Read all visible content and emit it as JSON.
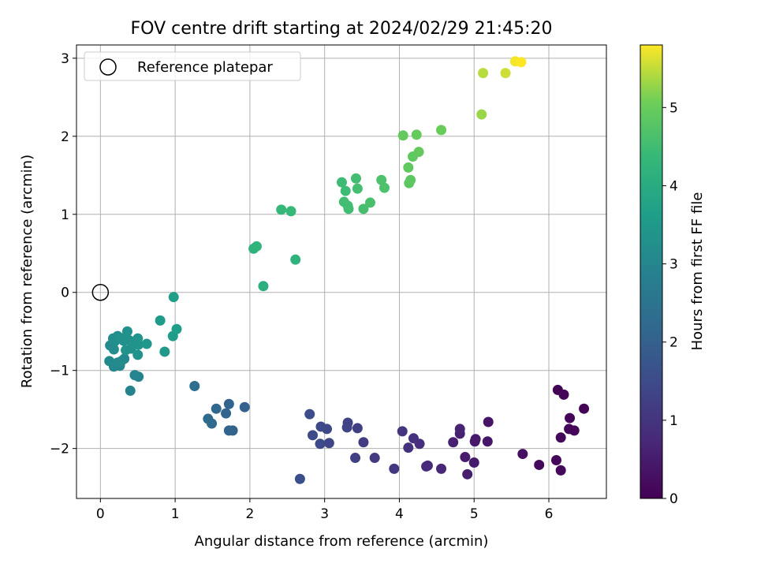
{
  "chart_data": {
    "type": "scatter",
    "title": "FOV centre drift starting at 2024/02/29 21:45:20",
    "xlabel": "Angular distance from reference (arcmin)",
    "ylabel": "Rotation from reference (arcmin)",
    "xlim": [
      -0.32,
      6.77
    ],
    "ylim": [
      -2.64,
      3.17
    ],
    "xticks": [
      0,
      1,
      2,
      3,
      4,
      5,
      6
    ],
    "yticks": [
      -2,
      -1,
      0,
      1,
      2,
      3
    ],
    "grid": true,
    "legend": {
      "location": "top-left",
      "entries": [
        "Reference platepar"
      ]
    },
    "reference": {
      "x": 0,
      "y": 0,
      "label": "Reference platepar"
    },
    "colorbar": {
      "label": "Hours from first FF file",
      "colormap": "viridis",
      "range": [
        0,
        5.8
      ],
      "ticks": [
        0,
        1,
        2,
        3,
        4,
        5
      ]
    },
    "points": [
      [
        6.12,
        -1.25,
        0.05
      ],
      [
        6.2,
        -1.31,
        0.06
      ],
      [
        6.47,
        -1.49,
        0.07
      ],
      [
        6.28,
        -1.61,
        0.08
      ],
      [
        6.27,
        -1.75,
        0.09
      ],
      [
        6.34,
        -1.77,
        0.1
      ],
      [
        6.16,
        -1.86,
        0.11
      ],
      [
        6.1,
        -2.15,
        0.12
      ],
      [
        6.16,
        -2.28,
        0.13
      ],
      [
        5.87,
        -2.21,
        0.15
      ],
      [
        5.65,
        -2.07,
        0.28
      ],
      [
        5.19,
        -1.66,
        0.38
      ],
      [
        5.18,
        -1.91,
        0.4
      ],
      [
        5.02,
        -1.88,
        0.43
      ],
      [
        5.01,
        -1.91,
        0.45
      ],
      [
        5.0,
        -2.18,
        0.48
      ],
      [
        4.88,
        -2.11,
        0.5
      ],
      [
        4.91,
        -2.33,
        0.52
      ],
      [
        4.72,
        -1.92,
        0.58
      ],
      [
        4.81,
        -1.81,
        0.6
      ],
      [
        4.81,
        -1.75,
        0.63
      ],
      [
        4.56,
        -2.26,
        0.7
      ],
      [
        4.38,
        -2.22,
        0.78
      ],
      [
        4.36,
        -2.23,
        0.8
      ],
      [
        4.27,
        -1.94,
        0.88
      ],
      [
        4.19,
        -1.87,
        0.92
      ],
      [
        4.12,
        -1.99,
        0.95
      ],
      [
        4.04,
        -1.78,
        1.0
      ],
      [
        3.93,
        -2.26,
        1.05
      ],
      [
        3.67,
        -2.12,
        1.12
      ],
      [
        3.52,
        -1.92,
        1.18
      ],
      [
        3.44,
        -1.74,
        1.22
      ],
      [
        3.41,
        -2.12,
        1.25
      ],
      [
        3.31,
        -1.67,
        1.3
      ],
      [
        3.3,
        -1.73,
        1.33
      ],
      [
        3.06,
        -1.93,
        1.38
      ],
      [
        3.03,
        -1.75,
        1.42
      ],
      [
        2.95,
        -1.72,
        1.45
      ],
      [
        2.94,
        -1.94,
        1.48
      ],
      [
        2.84,
        -1.83,
        1.52
      ],
      [
        2.8,
        -1.56,
        1.55
      ],
      [
        2.67,
        -2.39,
        1.6
      ],
      [
        1.93,
        -1.47,
        2.0
      ],
      [
        1.77,
        -1.77,
        2.05
      ],
      [
        1.72,
        -1.43,
        2.08
      ],
      [
        1.72,
        -1.77,
        2.1
      ],
      [
        1.68,
        -1.55,
        2.12
      ],
      [
        1.55,
        -1.49,
        2.18
      ],
      [
        1.49,
        -1.68,
        2.22
      ],
      [
        1.44,
        -1.62,
        2.25
      ],
      [
        1.26,
        -1.2,
        2.35
      ],
      [
        0.51,
        -1.08,
        2.9
      ],
      [
        0.46,
        -1.06,
        2.95
      ],
      [
        0.4,
        -1.26,
        2.92
      ],
      [
        0.32,
        -0.85,
        3.0
      ],
      [
        0.26,
        -0.94,
        3.02
      ],
      [
        0.18,
        -0.95,
        3.05
      ],
      [
        0.12,
        -0.88,
        3.08
      ],
      [
        0.23,
        -0.9,
        3.1
      ],
      [
        0.28,
        -0.88,
        3.12
      ],
      [
        0.13,
        -0.68,
        3.1
      ],
      [
        0.18,
        -0.73,
        3.15
      ],
      [
        0.19,
        -0.63,
        3.18
      ],
      [
        0.17,
        -0.59,
        3.2
      ],
      [
        0.23,
        -0.56,
        3.22
      ],
      [
        0.26,
        -0.58,
        3.25
      ],
      [
        0.31,
        -0.62,
        3.27
      ],
      [
        0.36,
        -0.5,
        3.3
      ],
      [
        0.38,
        -0.61,
        3.28
      ],
      [
        0.34,
        -0.74,
        3.32
      ],
      [
        0.41,
        -0.72,
        3.3
      ],
      [
        0.46,
        -0.65,
        3.34
      ],
      [
        0.5,
        -0.59,
        3.36
      ],
      [
        0.51,
        -0.67,
        3.38
      ],
      [
        0.5,
        -0.8,
        3.35
      ],
      [
        0.62,
        -0.66,
        3.42
      ],
      [
        0.8,
        -0.36,
        3.55
      ],
      [
        0.86,
        -0.76,
        3.5
      ],
      [
        0.97,
        -0.56,
        3.6
      ],
      [
        1.02,
        -0.47,
        3.62
      ],
      [
        0.98,
        -0.06,
        3.65
      ],
      [
        2.18,
        0.08,
        4.1
      ],
      [
        2.05,
        0.56,
        4.2
      ],
      [
        2.09,
        0.59,
        4.22
      ],
      [
        2.61,
        0.42,
        4.2
      ],
      [
        2.42,
        1.06,
        4.35
      ],
      [
        2.55,
        1.04,
        4.37
      ],
      [
        3.23,
        1.41,
        4.45
      ],
      [
        3.28,
        1.3,
        4.47
      ],
      [
        3.26,
        1.16,
        4.5
      ],
      [
        3.32,
        1.07,
        4.52
      ],
      [
        3.31,
        1.11,
        4.53
      ],
      [
        3.42,
        1.46,
        4.55
      ],
      [
        3.44,
        1.33,
        4.56
      ],
      [
        3.52,
        1.07,
        4.58
      ],
      [
        3.61,
        1.15,
        4.6
      ],
      [
        3.76,
        1.44,
        4.65
      ],
      [
        3.8,
        1.34,
        4.66
      ],
      [
        4.13,
        1.4,
        4.85
      ],
      [
        4.15,
        1.44,
        4.86
      ],
      [
        4.12,
        1.6,
        4.88
      ],
      [
        4.18,
        1.74,
        4.9
      ],
      [
        4.26,
        1.8,
        4.93
      ],
      [
        4.05,
        2.01,
        4.95
      ],
      [
        4.23,
        2.02,
        4.97
      ],
      [
        4.56,
        2.08,
        5.0
      ],
      [
        5.1,
        2.28,
        5.3
      ],
      [
        5.12,
        2.81,
        5.45
      ],
      [
        5.42,
        2.81,
        5.55
      ],
      [
        5.55,
        2.96,
        5.75
      ],
      [
        5.63,
        2.95,
        5.8
      ]
    ]
  }
}
